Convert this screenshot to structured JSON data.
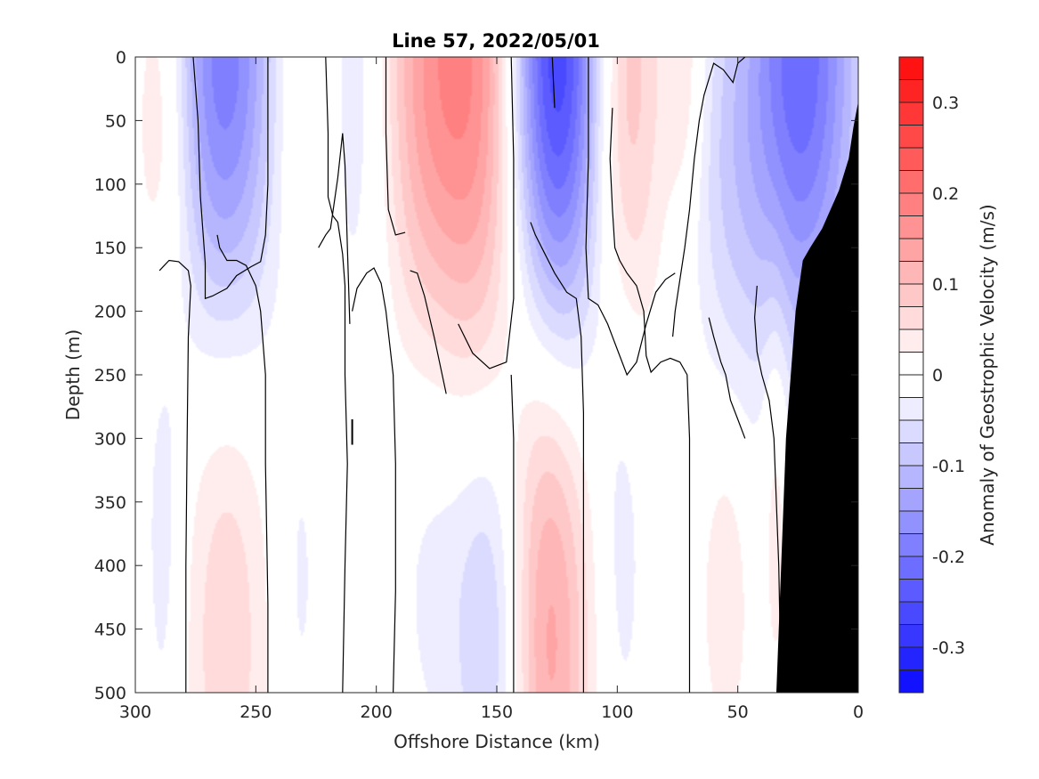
{
  "chart_data": {
    "type": "heatmap",
    "subtype": "filled-contour depth section with zero contour and bathymetry mask",
    "title": "Line 57, 2022/05/01",
    "xlabel": "Offshore Distance (km)",
    "ylabel": "Depth (m)",
    "colorbar_label": "Anomaly of Geostrophic Velocity (m/s)",
    "x_axis_reversed": true,
    "y_axis_reversed": true,
    "xlim": [
      0,
      300
    ],
    "ylim": [
      0,
      500
    ],
    "x_ticks": [
      300,
      250,
      200,
      150,
      100,
      50,
      0
    ],
    "x_tick_labels": [
      "300",
      "250",
      "200",
      "150",
      "100",
      "50",
      "0"
    ],
    "y_ticks": [
      0,
      50,
      100,
      150,
      200,
      250,
      300,
      350,
      400,
      450,
      500
    ],
    "y_tick_labels": [
      "0",
      "50",
      "100",
      "150",
      "200",
      "250",
      "300",
      "350",
      "400",
      "450",
      "500"
    ],
    "colorbar_range": [
      -0.35,
      0.35
    ],
    "colorbar_step": 0.025,
    "colorbar_ticks": [
      -0.3,
      -0.2,
      -0.1,
      0,
      0.1,
      0.2,
      0.3
    ],
    "colorbar_tick_labels": [
      "-0.3",
      "-0.2",
      "-0.1",
      "0",
      "0.1",
      "0.2",
      "0.3"
    ],
    "colors": {
      "positive": "#ff0000",
      "negative": "#0000ff",
      "zero": "#ffffff",
      "bathymetry": "#000000",
      "contour": "#000000"
    },
    "grid": false,
    "features": [
      {
        "x": 288,
        "depth": 40,
        "value": 0.09,
        "width_km": 9,
        "depth_scale_m": 120
      },
      {
        "x": 262,
        "depth": 5,
        "value": -0.2,
        "width_km": 18,
        "depth_scale_m": 150
      },
      {
        "x": 232,
        "depth": 20,
        "value": 0.07,
        "width_km": 14,
        "depth_scale_m": 120
      },
      {
        "x": 208,
        "depth": 15,
        "value": -0.07,
        "width_km": 12,
        "depth_scale_m": 150
      },
      {
        "x": 178,
        "depth": 15,
        "value": 0.14,
        "width_km": 16,
        "depth_scale_m": 160
      },
      {
        "x": 153,
        "depth": 15,
        "value": 0.14,
        "width_km": 14,
        "depth_scale_m": 180
      },
      {
        "x": 126,
        "depth": 5,
        "value": -0.3,
        "width_km": 15,
        "depth_scale_m": 170
      },
      {
        "x": 98,
        "depth": 20,
        "value": 0.12,
        "width_km": 11,
        "depth_scale_m": 150
      },
      {
        "x": 72,
        "depth": 10,
        "value": 0.05,
        "width_km": 6,
        "depth_scale_m": 80
      },
      {
        "x": 55,
        "depth": 100,
        "value": -0.05,
        "width_km": 11,
        "depth_scale_m": 120
      },
      {
        "x": 24,
        "depth": 5,
        "value": -0.22,
        "width_km": 17,
        "depth_scale_m": 160
      },
      {
        "x": 288,
        "depth": 380,
        "value": -0.04,
        "width_km": 6,
        "depth_scale_m": 140
      },
      {
        "x": 262,
        "depth": 440,
        "value": 0.07,
        "width_km": 13,
        "depth_scale_m": 170
      },
      {
        "x": 232,
        "depth": 420,
        "value": -0.03,
        "width_km": 7,
        "depth_scale_m": 120
      },
      {
        "x": 175,
        "depth": 360,
        "value": -0.04,
        "width_km": 14,
        "depth_scale_m": 150
      },
      {
        "x": 152,
        "depth": 450,
        "value": -0.08,
        "width_km": 10,
        "depth_scale_m": 130
      },
      {
        "x": 128,
        "depth": 430,
        "value": 0.14,
        "width_km": 12,
        "depth_scale_m": 190
      },
      {
        "x": 98,
        "depth": 370,
        "value": -0.04,
        "width_km": 7,
        "depth_scale_m": 140
      },
      {
        "x": 55,
        "depth": 420,
        "value": 0.05,
        "width_km": 7,
        "depth_scale_m": 90
      },
      {
        "x": 34,
        "depth": 330,
        "value": 0.05,
        "width_km": 4,
        "depth_scale_m": 120
      }
    ],
    "zero_contours": [
      [
        [
          290,
          168
        ],
        [
          286,
          160
        ],
        [
          282,
          161
        ],
        [
          278,
          168
        ],
        [
          277,
          180
        ],
        [
          278,
          220
        ],
        [
          278.5,
          300
        ],
        [
          279,
          400
        ],
        [
          279,
          500
        ]
      ],
      [
        [
          276,
          0
        ],
        [
          274,
          50
        ],
        [
          273,
          110
        ],
        [
          271,
          162
        ],
        [
          271,
          190
        ],
        [
          268,
          188
        ],
        [
          262,
          182
        ],
        [
          258,
          172
        ],
        [
          252,
          165
        ],
        [
          248,
          161
        ],
        [
          246,
          140
        ],
        [
          245,
          100
        ],
        [
          245,
          50
        ],
        [
          245,
          0
        ]
      ],
      [
        [
          245,
          500
        ],
        [
          245,
          430
        ],
        [
          246,
          320
        ],
        [
          246,
          250
        ],
        [
          248,
          200
        ],
        [
          250,
          180
        ],
        [
          254,
          164
        ],
        [
          258,
          160
        ],
        [
          262,
          160
        ],
        [
          265,
          150
        ],
        [
          266,
          140
        ]
      ],
      [
        [
          221,
          0
        ],
        [
          220,
          60
        ],
        [
          220,
          110
        ],
        [
          218,
          125
        ],
        [
          216,
          130
        ],
        [
          214,
          155
        ],
        [
          213,
          180
        ],
        [
          213,
          250
        ],
        [
          212,
          320
        ],
        [
          213,
          400
        ],
        [
          214,
          500
        ]
      ],
      [
        [
          211,
          210
        ],
        [
          212,
          150
        ],
        [
          213,
          85
        ],
        [
          214,
          60
        ],
        [
          216,
          95
        ],
        [
          219,
          135
        ],
        [
          221,
          140
        ],
        [
          224,
          150
        ]
      ],
      [
        [
          196,
          0
        ],
        [
          196,
          60
        ],
        [
          195,
          120
        ],
        [
          192,
          140
        ],
        [
          188,
          138
        ]
      ],
      [
        [
          193,
          500
        ],
        [
          192,
          420
        ],
        [
          192,
          320
        ],
        [
          193,
          250
        ],
        [
          196,
          200
        ],
        [
          198,
          178
        ],
        [
          201,
          166
        ],
        [
          204,
          170
        ],
        [
          208,
          182
        ],
        [
          210,
          200
        ]
      ],
      [
        [
          171,
          265
        ],
        [
          176,
          220
        ],
        [
          180,
          188
        ],
        [
          183,
          170
        ],
        [
          186,
          168
        ]
      ],
      [
        [
          144,
          0
        ],
        [
          143,
          80
        ],
        [
          143,
          190
        ],
        [
          146,
          240
        ],
        [
          153,
          245
        ],
        [
          160,
          233
        ],
        [
          166,
          210
        ]
      ],
      [
        [
          143,
          500
        ],
        [
          143,
          420
        ],
        [
          143,
          300
        ],
        [
          144,
          250
        ]
      ],
      [
        [
          127,
          0
        ],
        [
          126,
          40
        ]
      ],
      [
        [
          114,
          500
        ],
        [
          114,
          400
        ],
        [
          114,
          280
        ],
        [
          115,
          220
        ],
        [
          117,
          190
        ],
        [
          121,
          185
        ],
        [
          126,
          170
        ],
        [
          130,
          155
        ],
        [
          134,
          140
        ],
        [
          136,
          130
        ]
      ],
      [
        [
          112,
          0
        ],
        [
          112,
          80
        ],
        [
          113,
          150
        ],
        [
          112,
          190
        ],
        [
          108,
          195
        ],
        [
          104,
          210
        ],
        [
          100,
          230
        ],
        [
          96,
          250
        ],
        [
          92,
          240
        ],
        [
          88,
          210
        ],
        [
          84,
          185
        ],
        [
          80,
          175
        ],
        [
          76,
          170
        ]
      ],
      [
        [
          70,
          500
        ],
        [
          70,
          400
        ],
        [
          70,
          300
        ],
        [
          71,
          250
        ],
        [
          74,
          240
        ],
        [
          78,
          237
        ],
        [
          82,
          240
        ],
        [
          86,
          248
        ],
        [
          88,
          235
        ],
        [
          89,
          200
        ],
        [
          92,
          180
        ],
        [
          96,
          170
        ],
        [
          99,
          160
        ],
        [
          101,
          150
        ],
        [
          102,
          120
        ],
        [
          103,
          80
        ],
        [
          102,
          40
        ]
      ],
      [
        [
          47,
          0
        ],
        [
          50,
          5
        ],
        [
          52,
          20
        ],
        [
          56,
          10
        ],
        [
          60,
          5
        ],
        [
          64,
          30
        ],
        [
          66,
          50
        ],
        [
          68,
          80
        ],
        [
          70,
          120
        ],
        [
          72,
          150
        ],
        [
          74,
          175
        ],
        [
          76,
          200
        ],
        [
          77,
          220
        ]
      ],
      [
        [
          47,
          300
        ],
        [
          50,
          285
        ],
        [
          53,
          270
        ],
        [
          55,
          250
        ],
        [
          57,
          240
        ],
        [
          60,
          220
        ],
        [
          62,
          205
        ]
      ],
      [
        [
          32,
          500
        ],
        [
          33,
          400
        ],
        [
          35,
          300
        ],
        [
          37,
          270
        ],
        [
          40,
          250
        ],
        [
          42,
          232
        ],
        [
          43,
          205
        ],
        [
          42,
          180
        ]
      ]
    ],
    "bathymetry_surface": [
      [
        34,
        500
      ],
      [
        32,
        400
      ],
      [
        30,
        300
      ],
      [
        26,
        200
      ],
      [
        23,
        160
      ],
      [
        20,
        150
      ],
      [
        15,
        135
      ],
      [
        8,
        105
      ],
      [
        4,
        80
      ],
      [
        2,
        55
      ],
      [
        0,
        35
      ]
    ],
    "annotation_segment": {
      "x": 210,
      "depth_from": 285,
      "depth_to": 305
    }
  }
}
